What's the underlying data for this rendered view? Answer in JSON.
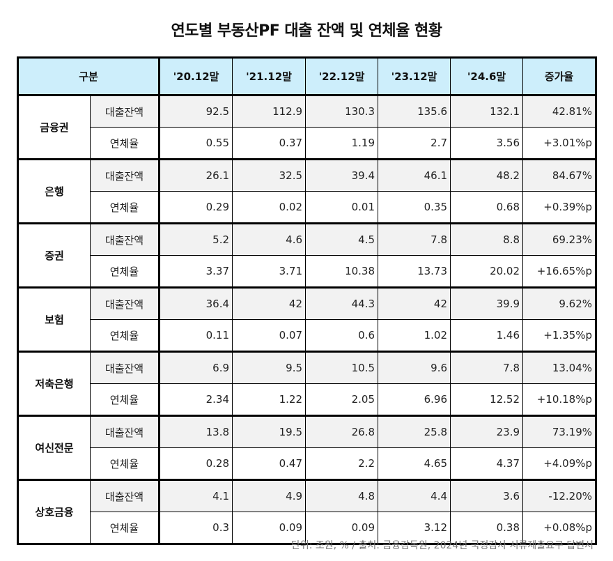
{
  "title": "연도별 부동산PF 대출 잔액 및 연체율 현황",
  "table": {
    "header": {
      "category": "구분",
      "columns": [
        "'20.12말",
        "'21.12말",
        "'22.12말",
        "'23.12말",
        "'24.6말",
        "증가율"
      ]
    },
    "groups": [
      {
        "name": "금융권",
        "loan": {
          "label": "대출잔액",
          "values": [
            "92.5",
            "112.9",
            "130.3",
            "135.6",
            "132.1",
            "42.81%"
          ]
        },
        "delinq": {
          "label": "연체율",
          "values": [
            "0.55",
            "0.37",
            "1.19",
            "2.7",
            "3.56",
            "+3.01%p"
          ]
        }
      },
      {
        "name": "은행",
        "loan": {
          "label": "대출잔액",
          "values": [
            "26.1",
            "32.5",
            "39.4",
            "46.1",
            "48.2",
            "84.67%"
          ]
        },
        "delinq": {
          "label": "연체율",
          "values": [
            "0.29",
            "0.02",
            "0.01",
            "0.35",
            "0.68",
            "+0.39%p"
          ]
        }
      },
      {
        "name": "증권",
        "loan": {
          "label": "대출잔액",
          "values": [
            "5.2",
            "4.6",
            "4.5",
            "7.8",
            "8.8",
            "69.23%"
          ]
        },
        "delinq": {
          "label": "연체율",
          "values": [
            "3.37",
            "3.71",
            "10.38",
            "13.73",
            "20.02",
            "+16.65%p"
          ]
        }
      },
      {
        "name": "보험",
        "loan": {
          "label": "대출잔액",
          "values": [
            "36.4",
            "42",
            "44.3",
            "42",
            "39.9",
            "9.62%"
          ]
        },
        "delinq": {
          "label": "연체율",
          "values": [
            "0.11",
            "0.07",
            "0.6",
            "1.02",
            "1.46",
            "+1.35%p"
          ]
        }
      },
      {
        "name": "저축은행",
        "loan": {
          "label": "대출잔액",
          "values": [
            "6.9",
            "9.5",
            "10.5",
            "9.6",
            "7.8",
            "13.04%"
          ]
        },
        "delinq": {
          "label": "연체율",
          "values": [
            "2.34",
            "1.22",
            "2.05",
            "6.96",
            "12.52",
            "+10.18%p"
          ]
        }
      },
      {
        "name": "여신전문",
        "loan": {
          "label": "대출잔액",
          "values": [
            "13.8",
            "19.5",
            "26.8",
            "25.8",
            "23.9",
            "73.19%"
          ]
        },
        "delinq": {
          "label": "연체율",
          "values": [
            "0.28",
            "0.47",
            "2.2",
            "4.65",
            "4.37",
            "+4.09%p"
          ]
        }
      },
      {
        "name": "상호금융",
        "loan": {
          "label": "대출잔액",
          "values": [
            "4.1",
            "4.9",
            "4.8",
            "4.4",
            "3.6",
            "-12.20%"
          ]
        },
        "delinq": {
          "label": "연체율",
          "values": [
            "0.3",
            "0.09",
            "0.09",
            "3.12",
            "0.38",
            "+0.08%p"
          ]
        }
      }
    ]
  },
  "footer": "단위: 조원, % / 출처: 금융감독원, 2024년 국정감사 서류제출요구 답변서",
  "colors": {
    "header_bg": "#cdeefb",
    "loan_row_bg": "#f2f2f2",
    "border": "#000000"
  }
}
